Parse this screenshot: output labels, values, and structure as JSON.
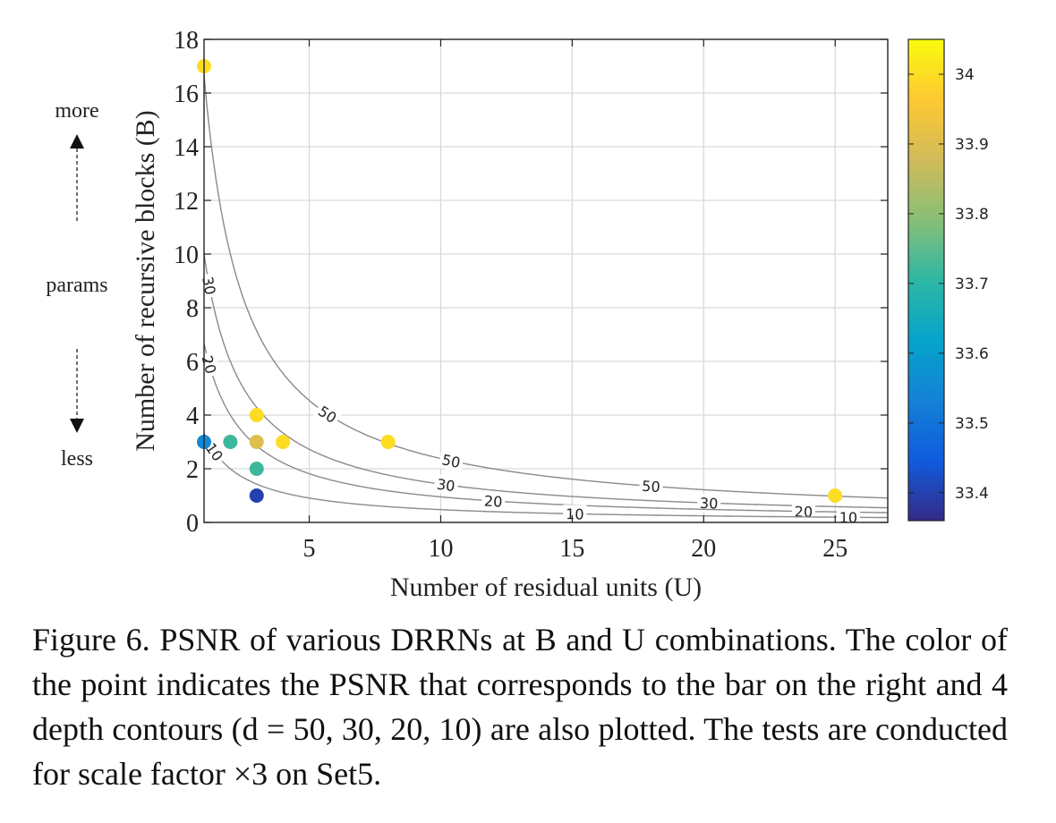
{
  "chart_data": {
    "type": "scatter",
    "xlabel": "Number of residual units (U)",
    "ylabel": "Number of recursive blocks (B)",
    "xlim": [
      1,
      27
    ],
    "ylim": [
      0,
      18
    ],
    "xticks": [
      5,
      10,
      15,
      20,
      25
    ],
    "yticks": [
      0,
      2,
      4,
      6,
      8,
      10,
      12,
      14,
      16,
      18
    ],
    "grid": true,
    "points": [
      {
        "U": 1,
        "B": 17,
        "psnr": 34.0
      },
      {
        "U": 1,
        "B": 3,
        "psnr": 33.55
      },
      {
        "U": 2,
        "B": 3,
        "psnr": 33.72
      },
      {
        "U": 3,
        "B": 4,
        "psnr": 34.0
      },
      {
        "U": 3,
        "B": 3,
        "psnr": 33.9
      },
      {
        "U": 3,
        "B": 2,
        "psnr": 33.72
      },
      {
        "U": 3,
        "B": 1,
        "psnr": 33.4
      },
      {
        "U": 4,
        "B": 3,
        "psnr": 34.0
      },
      {
        "U": 8,
        "B": 3,
        "psnr": 34.0
      },
      {
        "U": 25,
        "B": 1,
        "psnr": 34.0
      }
    ],
    "contours": [
      {
        "label": "50",
        "depth": 50
      },
      {
        "label": "30",
        "depth": 30
      },
      {
        "label": "20",
        "depth": 20
      },
      {
        "label": "10",
        "depth": 10
      }
    ],
    "colorbar": {
      "range": [
        33.36,
        34.05
      ],
      "ticks": [
        "33.4",
        "33.5",
        "33.6",
        "33.7",
        "33.8",
        "33.9",
        "34"
      ],
      "colormap": [
        "#352a87",
        "#0f5cdd",
        "#1481d6",
        "#06a4ca",
        "#2eb7a4",
        "#87bf77",
        "#d1bb59",
        "#fec832",
        "#f9fb0e"
      ]
    },
    "side_annotations": {
      "top": "more",
      "middle": "params",
      "bottom": "less"
    }
  },
  "caption": "Figure 6. PSNR of various DRRNs at B and U combinations. The color of the point indicates the PSNR that corresponds to the bar on the right and 4 depth contours (d = 50, 30, 20, 10) are also plotted. The tests are conducted for scale factor ×3 on Set5."
}
